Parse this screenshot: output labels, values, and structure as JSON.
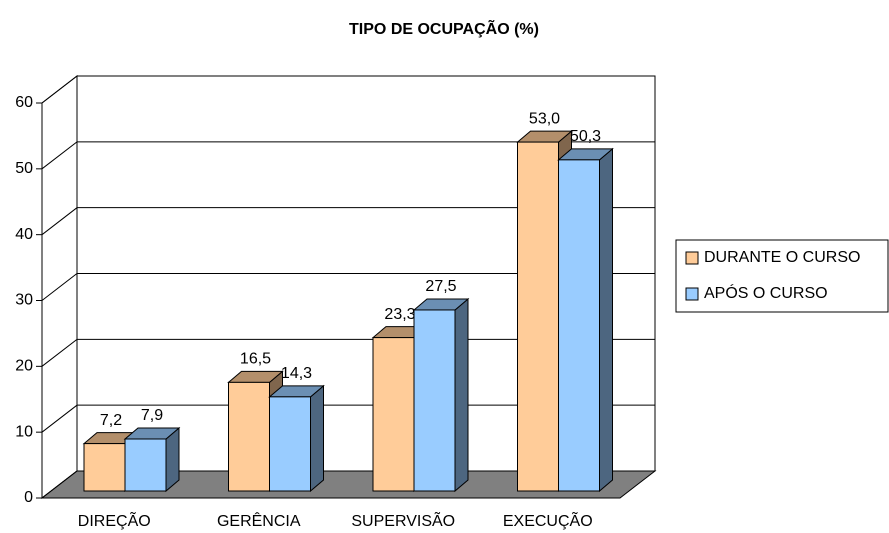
{
  "chart_data": {
    "type": "bar3d",
    "title": "TIPO DE OCUPAÇÃO (%)",
    "categories": [
      "DIREÇÃO",
      "GERÊNCIA",
      "SUPERVISÃO",
      "EXECUÇÃO"
    ],
    "series": [
      {
        "name": "DURANTE O CURSO",
        "color": "#ffcc99",
        "values": [
          7.2,
          16.5,
          23.3,
          53.0
        ],
        "value_labels": [
          "7,2",
          "16,5",
          "23,3",
          "53,0"
        ]
      },
      {
        "name": "APÓS O CURSO",
        "color": "#99ccff",
        "values": [
          7.9,
          14.3,
          27.5,
          50.3
        ],
        "value_labels": [
          "7,9",
          "14,3",
          "27,5",
          "50,3"
        ]
      }
    ],
    "ylim": [
      0,
      60
    ],
    "yticks": [
      0,
      10,
      20,
      30,
      40,
      50,
      60
    ],
    "grid": true,
    "legend": "right"
  }
}
